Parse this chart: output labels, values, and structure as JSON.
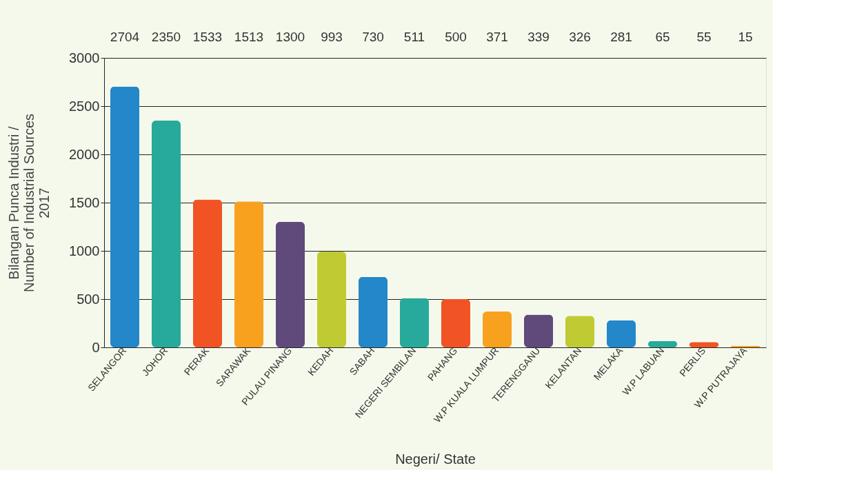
{
  "chart_data": {
    "type": "bar",
    "xlabel": "Negeri/ State",
    "ylabel": "Bilangan Punca Industri / Number of Industrial Sources 2017",
    "categories": [
      "SELANGOR",
      "JOHOR",
      "PERAK",
      "SARAWAK",
      "PULAU PINANG",
      "KEDAH",
      "SABAH",
      "NEGERI SEMBILAN",
      "PAHANG",
      "W.P KUALA LUMPUR",
      "TERENGGANU",
      "KELANTAN",
      "MELAKA",
      "W.P LABUAN",
      "PERLIS",
      "W.P PUTRAJAYA"
    ],
    "values": [
      2704,
      2350,
      1533,
      1513,
      1300,
      993,
      730,
      511,
      500,
      371,
      339,
      326,
      281,
      65,
      55,
      15
    ],
    "colors": [
      "#2387c9",
      "#27a99b",
      "#f15324",
      "#f8a11e",
      "#5f4a7b",
      "#c0cb34",
      "#2387c9",
      "#27a99b",
      "#f15324",
      "#f8a11e",
      "#5f4a7b",
      "#c0cb34",
      "#2387c9",
      "#27a99b",
      "#f15324",
      "#f8a11e"
    ],
    "ylim": [
      0,
      3000
    ],
    "yticks": [
      0,
      500,
      1000,
      1500,
      2000,
      2500,
      3000
    ],
    "grid": "y",
    "data_labels": true,
    "legend": false
  }
}
